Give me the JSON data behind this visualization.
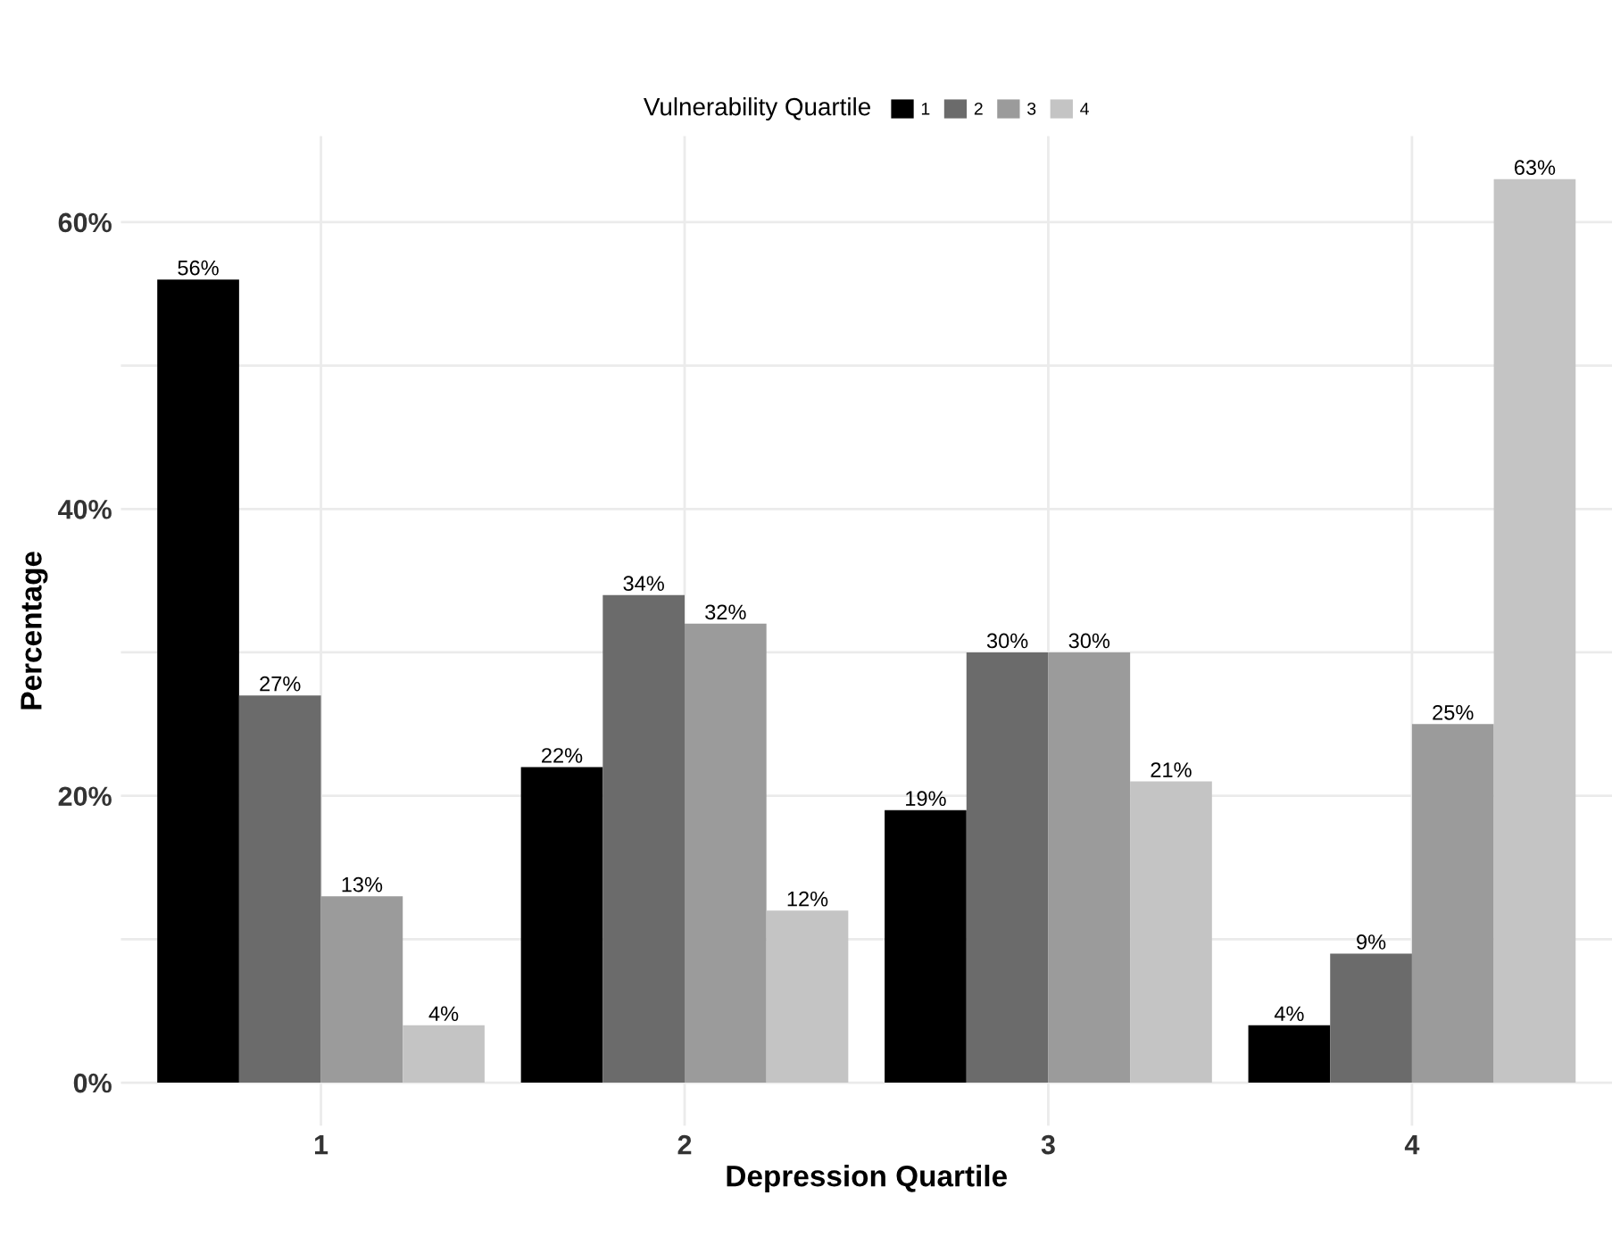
{
  "chart_data": {
    "type": "bar",
    "xlabel": "Depression Quartile",
    "ylabel": "Percentage",
    "legend_title": "Vulnerability Quartile",
    "categories": [
      "1",
      "2",
      "3",
      "4"
    ],
    "series": [
      {
        "name": "1",
        "color": "#000000",
        "values": [
          56,
          22,
          19,
          4
        ],
        "value_labels": [
          "56%",
          "22%",
          "19%",
          "4%"
        ]
      },
      {
        "name": "2",
        "color": "#6b6b6b",
        "values": [
          27,
          34,
          30,
          9
        ],
        "value_labels": [
          "27%",
          "34%",
          "30%",
          "9%"
        ]
      },
      {
        "name": "3",
        "color": "#9b9b9b",
        "values": [
          13,
          32,
          30,
          25
        ],
        "value_labels": [
          "13%",
          "32%",
          "30%",
          "25%"
        ]
      },
      {
        "name": "4",
        "color": "#c4c4c4",
        "values": [
          4,
          12,
          21,
          63
        ],
        "value_labels": [
          "4%",
          "12%",
          "21%",
          "63%"
        ]
      }
    ],
    "ylim": [
      -3,
      66
    ],
    "yticks": [
      {
        "value": 0,
        "label": "0%"
      },
      {
        "value": 10,
        "label": null
      },
      {
        "value": 20,
        "label": "20%"
      },
      {
        "value": 30,
        "label": null
      },
      {
        "value": 40,
        "label": "40%"
      },
      {
        "value": 50,
        "label": null
      },
      {
        "value": 60,
        "label": "60%"
      }
    ],
    "grid": true,
    "legend": "top"
  }
}
